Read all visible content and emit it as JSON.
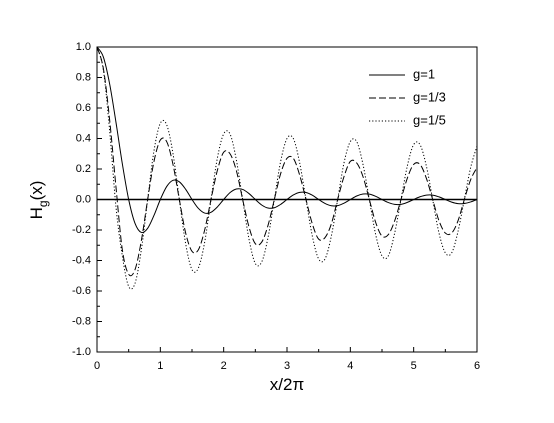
{
  "chart_data": {
    "type": "line",
    "xlabel": "x/2π",
    "ylabel": [
      "H",
      "g",
      "(x)"
    ],
    "xlim": [
      0,
      6
    ],
    "ylim": [
      -1.0,
      1.0
    ],
    "xticks": [
      0,
      1,
      2,
      3,
      4,
      5,
      6
    ],
    "yticks": [
      {
        "value": 1.0,
        "label": "1.0"
      },
      {
        "value": 0.8,
        "label": "0.8"
      },
      {
        "value": 0.6,
        "label": "0.6"
      },
      {
        "value": 0.4,
        "label": "0.4"
      },
      {
        "value": 0.2,
        "label": "0.2"
      },
      {
        "value": 0.0,
        "label": "0.0"
      },
      {
        "value": -0.2,
        "label": "-0.2"
      },
      {
        "value": -0.4,
        "label": "-0.4"
      },
      {
        "value": -0.6,
        "label": "-0.6"
      },
      {
        "value": -0.8,
        "label": "-0.8"
      },
      {
        "value": -1.0,
        "label": "-1.0"
      }
    ],
    "legend": "upper right",
    "x": [
      0,
      0.1,
      0.2,
      0.3,
      0.4,
      0.5,
      0.6,
      0.7,
      0.8,
      0.9,
      1.0,
      1.1,
      1.2,
      1.3,
      1.4,
      1.5,
      1.6,
      1.7,
      1.8,
      1.9,
      2.0,
      2.1,
      2.2,
      2.3,
      2.4,
      2.5,
      2.6,
      2.7,
      2.8,
      2.9,
      3.0,
      3.1,
      3.2,
      3.3,
      3.4,
      3.5,
      3.6,
      3.7,
      3.8,
      3.9,
      4.0,
      4.1,
      4.2,
      4.3,
      4.4,
      4.5,
      4.6,
      4.7,
      4.8,
      4.9,
      5.0,
      5.1,
      5.2,
      5.3,
      5.4,
      5.5,
      5.6,
      5.7,
      5.8,
      5.9,
      6.0
    ],
    "series": [
      {
        "name": "g=1",
        "color": "#000000",
        "dash": "solid",
        "values": [
          1,
          0.935,
          0.757,
          0.505,
          0.234,
          0,
          -0.156,
          -0.216,
          -0.189,
          -0.104,
          0,
          0.085,
          0.126,
          0.116,
          0.067,
          0,
          -0.058,
          -0.089,
          -0.084,
          -0.049,
          0,
          0.045,
          0.069,
          0.066,
          0.039,
          0,
          -0.036,
          -0.056,
          -0.054,
          -0.032,
          0,
          0.03,
          0.047,
          0.046,
          0.028,
          0,
          -0.026,
          -0.041,
          -0.04,
          -0.024,
          0,
          0.023,
          0.036,
          0.035,
          0.021,
          0,
          -0.02,
          -0.032,
          -0.032,
          -0.019,
          0,
          0.018,
          0.029,
          0.029,
          0.017,
          0,
          -0.017,
          -0.027,
          -0.026,
          -0.016,
          0
        ]
      },
      {
        "name": "g=1/3",
        "color": "#000000",
        "dash": "dashed",
        "values": [
          1,
          0.86,
          0.52,
          0.08,
          -0.33,
          -0.49,
          -0.46,
          -0.27,
          0,
          0.25,
          0.39,
          0.38,
          0.23,
          0,
          -0.22,
          -0.34,
          -0.33,
          -0.2,
          0,
          0.19,
          0.31,
          0.3,
          0.19,
          0,
          -0.18,
          -0.29,
          -0.28,
          -0.17,
          0,
          0.17,
          0.27,
          0.27,
          0.16,
          0,
          -0.16,
          -0.26,
          -0.25,
          -0.16,
          0,
          0.15,
          0.25,
          0.24,
          0.15,
          0,
          -0.15,
          -0.24,
          -0.23,
          -0.14,
          0,
          0.14,
          0.23,
          0.23,
          0.14,
          0,
          -0.14,
          -0.22,
          -0.22,
          -0.14,
          0,
          0.13,
          0.21
        ]
      },
      {
        "name": "g=1/5",
        "color": "#000000",
        "dash": "dotted",
        "values": [
          1,
          0.85,
          0.45,
          -0.05,
          -0.37,
          -0.57,
          -0.55,
          -0.33,
          0,
          0.32,
          0.5,
          0.49,
          0.3,
          0,
          -0.29,
          -0.46,
          -0.45,
          -0.28,
          0,
          0.27,
          0.43,
          0.43,
          0.26,
          0,
          -0.26,
          -0.42,
          -0.41,
          -0.25,
          0,
          0.25,
          0.4,
          0.4,
          0.24,
          0,
          -0.24,
          -0.39,
          -0.39,
          -0.24,
          0,
          0.24,
          0.38,
          0.38,
          0.23,
          0,
          -0.23,
          -0.37,
          -0.37,
          -0.22,
          0,
          0.22,
          0.36,
          0.36,
          0.22,
          0,
          -0.22,
          -0.35,
          -0.35,
          -0.21,
          0,
          0.21,
          0.35
        ]
      }
    ]
  }
}
